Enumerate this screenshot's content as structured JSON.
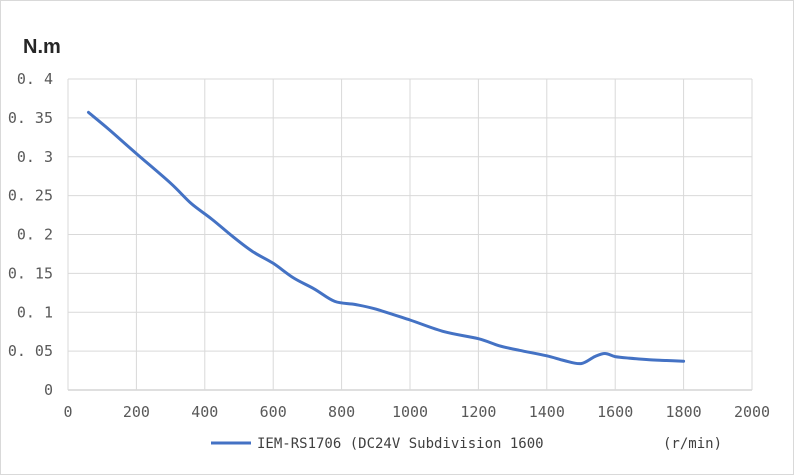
{
  "chart_data": {
    "type": "line",
    "title": "",
    "ylabel": "N.m",
    "xunit": "(r/min)",
    "xlim": [
      0,
      2000
    ],
    "ylim": [
      0,
      0.4
    ],
    "xticks": [
      0,
      200,
      400,
      600,
      800,
      1000,
      1200,
      1400,
      1600,
      1800,
      2000
    ],
    "yticks": [
      0,
      0.05,
      0.1,
      0.15,
      0.2,
      0.25,
      0.3,
      0.35,
      0.4
    ],
    "ytick_labels": [
      "0",
      "0. 05",
      "0. 1",
      "0. 15",
      "0. 2",
      "0. 25",
      "0. 3",
      "0. 35",
      "0. 4"
    ],
    "grid": true,
    "legend_position": "bottom",
    "series": [
      {
        "name": "IEM-RS1706 (DC24V Subdivision 1600",
        "color": "#4472c4",
        "x": [
          60,
          120,
          200,
          300,
          360,
          420,
          480,
          540,
          600,
          660,
          720,
          780,
          840,
          900,
          1000,
          1100,
          1200,
          1260,
          1320,
          1400,
          1450,
          1500,
          1540,
          1570,
          1600,
          1640,
          1700,
          1750,
          1800
        ],
        "y": [
          0.357,
          0.335,
          0.304,
          0.266,
          0.24,
          0.22,
          0.198,
          0.178,
          0.163,
          0.144,
          0.13,
          0.114,
          0.11,
          0.104,
          0.09,
          0.075,
          0.066,
          0.057,
          0.051,
          0.044,
          0.038,
          0.034,
          0.043,
          0.047,
          0.043,
          0.041,
          0.039,
          0.038,
          0.037
        ]
      }
    ]
  }
}
